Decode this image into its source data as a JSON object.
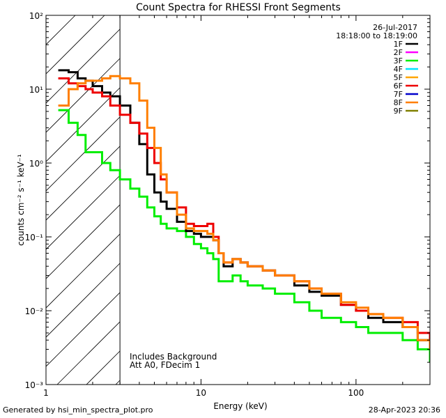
{
  "chart_data": {
    "type": "line",
    "title": "Count Spectra for RHESSI Front Segments",
    "xlabel": "Energy (keV)",
    "ylabel": "counts cm⁻² s⁻¹ keV⁻¹",
    "xscale": "log",
    "yscale": "log",
    "xlim": [
      1,
      300
    ],
    "ylim": [
      0.001,
      100
    ],
    "x_ticks": [
      {
        "value": 1,
        "label": "1"
      },
      {
        "value": 10,
        "label": "10"
      },
      {
        "value": 100,
        "label": "100"
      }
    ],
    "y_ticks": [
      {
        "value": 0.001,
        "label": "10⁻³"
      },
      {
        "value": 0.01,
        "label": "10⁻²"
      },
      {
        "value": 0.1,
        "label": "10⁻¹"
      },
      {
        "value": 1,
        "label": "10⁰"
      },
      {
        "value": 10,
        "label": "10¹"
      },
      {
        "value": 100,
        "label": "10²"
      }
    ],
    "date": "26-Jul-2017",
    "time_range": "18:18:00 to 18:19:00",
    "excluded_region_max_kev": 3,
    "annotations": [
      "Includes Background",
      "Att A0, FDecim 1"
    ],
    "legend": [
      {
        "label": "1F",
        "color": "#000000"
      },
      {
        "label": "2F",
        "color": "#ff00ff"
      },
      {
        "label": "3F",
        "color": "#00ee00"
      },
      {
        "label": "4F",
        "color": "#00e5ff"
      },
      {
        "label": "5F",
        "color": "#ffa500"
      },
      {
        "label": "6F",
        "color": "#ee0000"
      },
      {
        "label": "7F",
        "color": "#0000cc"
      },
      {
        "label": "8F",
        "color": "#ff7f00"
      },
      {
        "label": "9F",
        "color": "#808000"
      }
    ],
    "series": [
      {
        "name": "1F",
        "color": "#000000",
        "x": [
          1.2,
          1.4,
          1.6,
          1.8,
          2.0,
          2.3,
          2.6,
          3.0,
          3.5,
          4.0,
          4.5,
          5.0,
          5.5,
          6.0,
          7.0,
          8.0,
          9.0,
          10,
          11,
          12,
          13,
          14,
          16,
          18,
          20,
          25,
          30,
          40,
          50,
          60,
          80,
          100,
          120,
          150,
          200,
          250,
          300
        ],
        "y": [
          18,
          17,
          14,
          13,
          11,
          9,
          8,
          6,
          3.5,
          1.8,
          0.7,
          0.4,
          0.3,
          0.24,
          0.16,
          0.12,
          0.11,
          0.1,
          0.1,
          0.09,
          0.06,
          0.04,
          0.05,
          0.045,
          0.04,
          0.035,
          0.03,
          0.022,
          0.018,
          0.016,
          0.012,
          0.01,
          0.008,
          0.007,
          0.006,
          0.004,
          0.003
        ]
      },
      {
        "name": "3F",
        "color": "#00ee00",
        "x": [
          1.2,
          1.4,
          1.6,
          1.8,
          2.0,
          2.3,
          2.6,
          3.0,
          3.5,
          4.0,
          4.5,
          5.0,
          5.5,
          6.0,
          7.0,
          8.0,
          9.0,
          10,
          11,
          12,
          13,
          14,
          16,
          18,
          20,
          25,
          30,
          40,
          50,
          60,
          80,
          100,
          120,
          150,
          200,
          250,
          300
        ],
        "y": [
          5.2,
          3.5,
          2.4,
          1.4,
          1.4,
          1.0,
          0.8,
          0.6,
          0.45,
          0.35,
          0.25,
          0.19,
          0.15,
          0.13,
          0.12,
          0.1,
          0.08,
          0.07,
          0.06,
          0.05,
          0.025,
          0.025,
          0.03,
          0.025,
          0.022,
          0.02,
          0.017,
          0.013,
          0.01,
          0.008,
          0.007,
          0.006,
          0.005,
          0.005,
          0.004,
          0.003,
          0.002
        ]
      },
      {
        "name": "6F",
        "color": "#ee0000",
        "x": [
          1.2,
          1.4,
          1.6,
          1.8,
          2.0,
          2.3,
          2.6,
          3.0,
          3.5,
          4.0,
          4.5,
          5.0,
          5.5,
          6.0,
          7.0,
          8.0,
          9.0,
          10,
          11,
          12,
          13,
          14,
          16,
          18,
          20,
          25,
          30,
          40,
          50,
          60,
          80,
          100,
          120,
          150,
          200,
          250,
          300
        ],
        "y": [
          14,
          12,
          11,
          10,
          9,
          8,
          6,
          4.5,
          3.5,
          2.5,
          1.6,
          1.0,
          0.6,
          0.4,
          0.25,
          0.15,
          0.14,
          0.14,
          0.15,
          0.1,
          0.06,
          0.045,
          0.05,
          0.045,
          0.04,
          0.035,
          0.03,
          0.025,
          0.02,
          0.017,
          0.012,
          0.01,
          0.009,
          0.008,
          0.007,
          0.005,
          0.003
        ]
      },
      {
        "name": "8F",
        "color": "#ff7f00",
        "x": [
          1.2,
          1.4,
          1.6,
          1.8,
          2.0,
          2.3,
          2.6,
          3.0,
          3.5,
          4.0,
          4.5,
          5.0,
          5.5,
          6.0,
          7.0,
          8.0,
          9.0,
          10,
          11,
          12,
          13,
          14,
          16,
          18,
          20,
          25,
          30,
          40,
          50,
          60,
          80,
          100,
          120,
          150,
          200,
          250,
          300
        ],
        "y": [
          6,
          10,
          12,
          13,
          13,
          14,
          15,
          14,
          12,
          7,
          3.0,
          1.6,
          0.7,
          0.4,
          0.2,
          0.13,
          0.12,
          0.12,
          0.11,
          0.09,
          0.06,
          0.045,
          0.05,
          0.045,
          0.04,
          0.035,
          0.03,
          0.025,
          0.02,
          0.017,
          0.013,
          0.011,
          0.009,
          0.008,
          0.006,
          0.004,
          0.003
        ]
      }
    ]
  },
  "footer": {
    "generated_by": "Generated by hsi_min_spectra_plot.pro",
    "timestamp": "28-Apr-2023 20:36"
  }
}
